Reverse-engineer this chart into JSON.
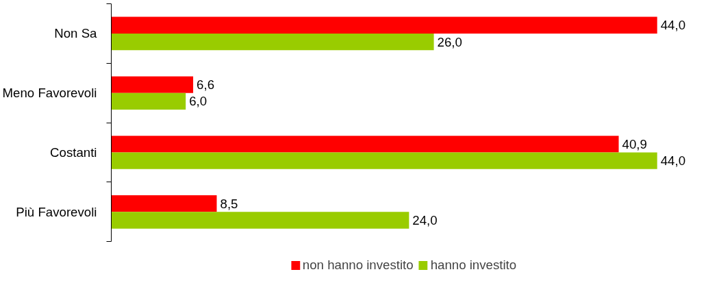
{
  "chart_data": {
    "type": "bar",
    "orientation": "horizontal",
    "categories": [
      "Non Sa",
      "Meno Favorevoli",
      "Costanti",
      "Più Favorevoli"
    ],
    "series": [
      {
        "name": "non hanno investito",
        "color": "#ff0000",
        "values": [
          44.0,
          6.6,
          40.9,
          8.5
        ],
        "value_labels": [
          "44,0",
          "6,6",
          "40,9",
          "8,5"
        ]
      },
      {
        "name": "hanno investito",
        "color": "#99cc00",
        "values": [
          26.0,
          6.0,
          44.0,
          24.0
        ],
        "value_labels": [
          "26,0",
          "6,0",
          "44,0",
          "24,0"
        ]
      }
    ],
    "legend": "bottom",
    "grid": false
  }
}
